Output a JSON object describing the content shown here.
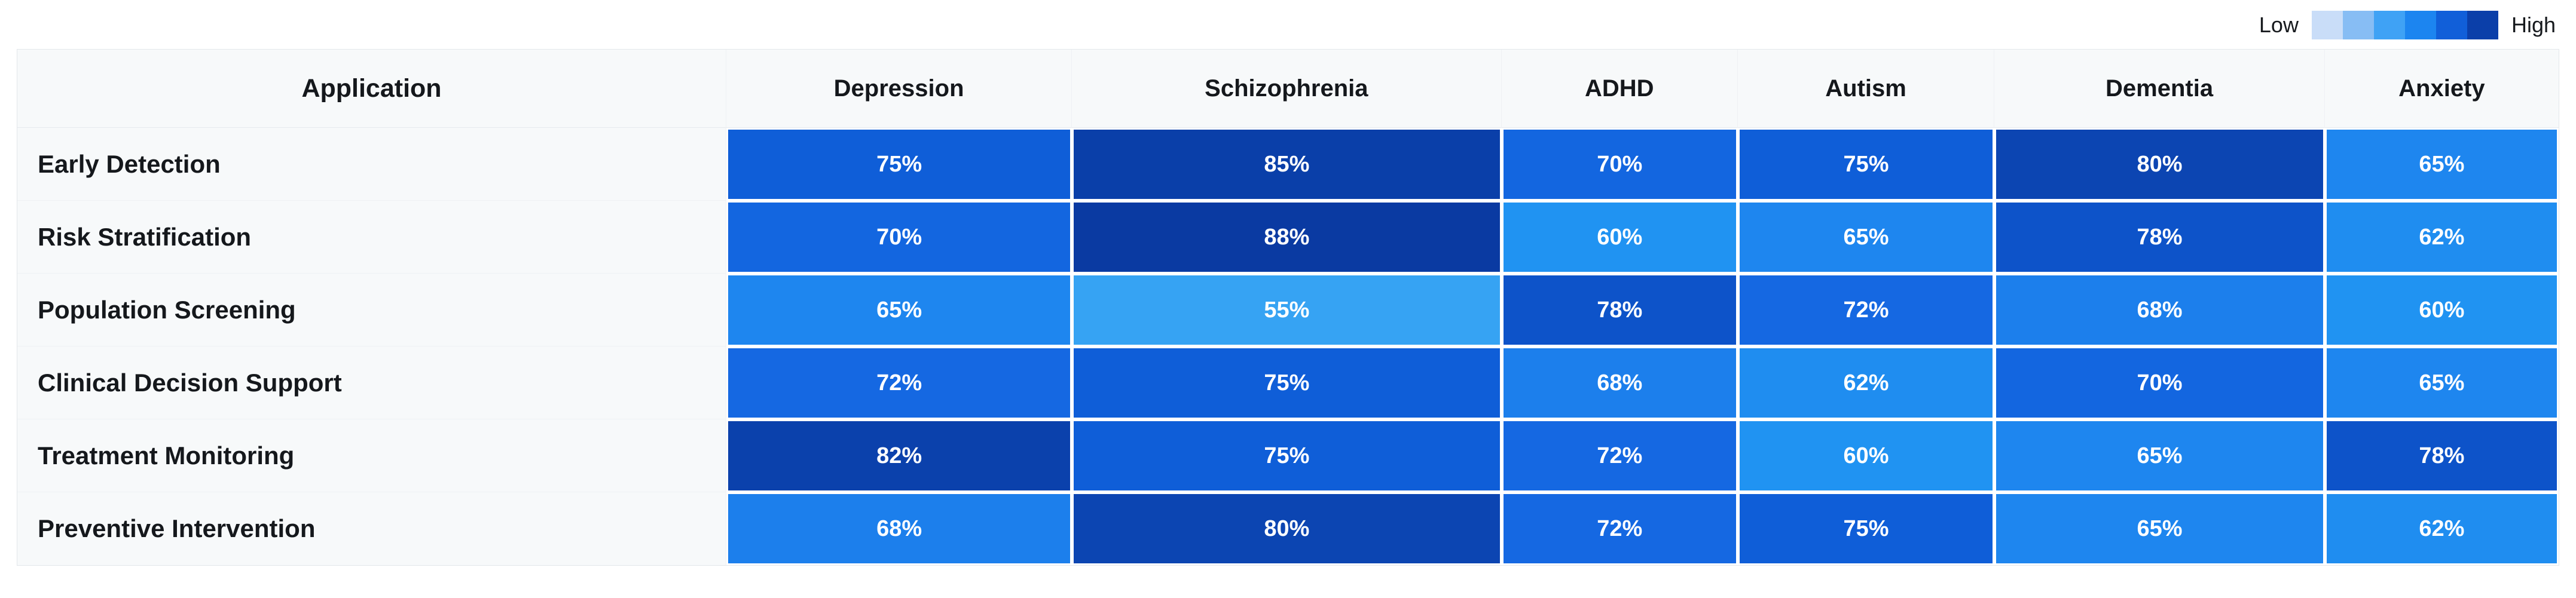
{
  "legend": {
    "low_label": "Low",
    "high_label": "High",
    "swatches": [
      "#C9DDF8",
      "#87BDF4",
      "#3FA2F5",
      "#1C85F0",
      "#115FD9",
      "#0B3FA9"
    ]
  },
  "table": {
    "header_col": "Application"
  },
  "chart_data": {
    "type": "heatmap",
    "columns": [
      "Depression",
      "Schizophrenia",
      "ADHD",
      "Autism",
      "Dementia",
      "Anxiety"
    ],
    "rows": [
      "Early Detection",
      "Risk Stratification",
      "Population Screening",
      "Clinical Decision Support",
      "Treatment Monitoring",
      "Preventive Intervention"
    ],
    "values": [
      [
        75,
        85,
        70,
        75,
        80,
        65
      ],
      [
        70,
        88,
        60,
        65,
        78,
        62
      ],
      [
        65,
        55,
        78,
        72,
        68,
        60
      ],
      [
        72,
        75,
        68,
        62,
        70,
        65
      ],
      [
        82,
        75,
        72,
        60,
        65,
        78
      ],
      [
        68,
        80,
        72,
        75,
        65,
        62
      ]
    ],
    "unit": "%",
    "value_range": [
      55,
      88
    ],
    "legend_position": "top-right",
    "color_map": {
      "55": "#36A3F3",
      "60": "#2093F2",
      "62": "#1F8DF0",
      "65": "#1E86EF",
      "68": "#1C7FEC",
      "70": "#1366E0",
      "72": "#1568E2",
      "75": "#0F5ED8",
      "78": "#0D53C9",
      "80": "#0C45B2",
      "82": "#0B41AC",
      "85": "#0A3FA9",
      "88": "#0A3AA2"
    }
  }
}
